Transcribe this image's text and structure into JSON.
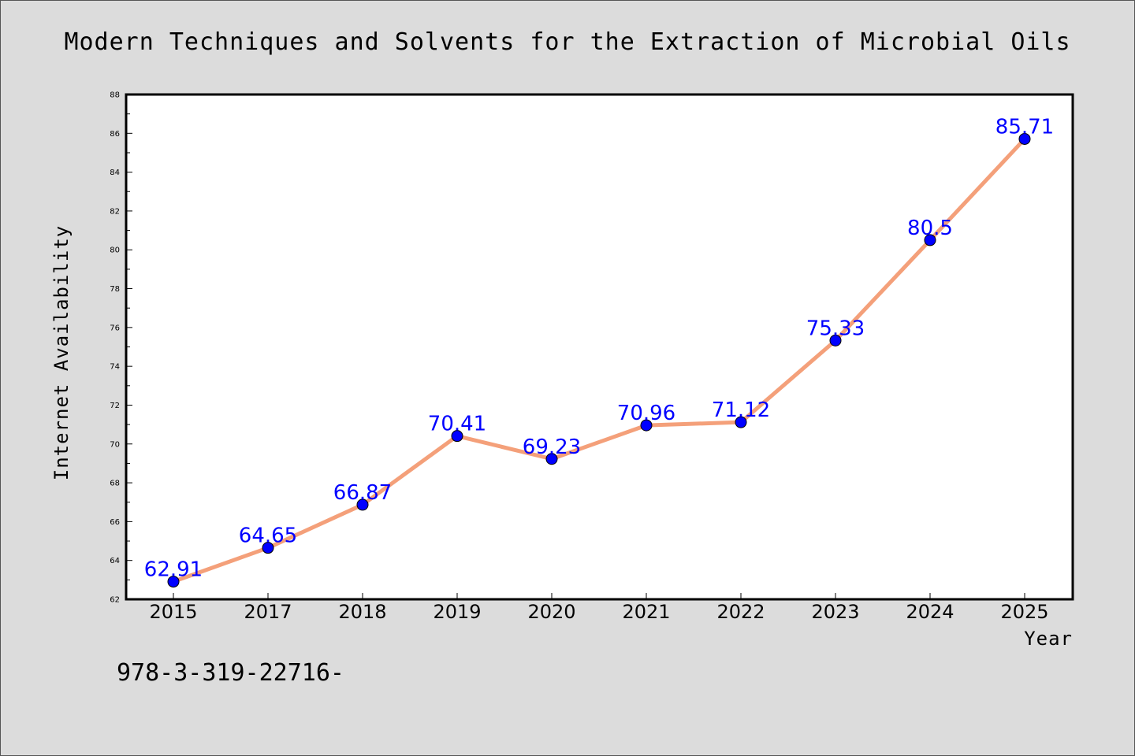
{
  "chart_data": {
    "type": "line",
    "title": "Modern Techniques and Solvents for the Extraction of Microbial Oils",
    "xlabel": "Year",
    "ylabel": "Internet Availability",
    "categories": [
      "2015",
      "2017",
      "2018",
      "2019",
      "2020",
      "2021",
      "2022",
      "2023",
      "2024",
      "2025"
    ],
    "series": [
      {
        "values": [
          62.91,
          64.65,
          66.87,
          70.41,
          69.23,
          70.96,
          71.12,
          75.33,
          80.5,
          85.71
        ],
        "data_labels": [
          "62.91",
          "64.65",
          "66.87",
          "70.41",
          "69.23",
          "70.96",
          "71.12",
          "75.33",
          "80.5",
          "85.71"
        ],
        "line_color": "#f4a07a",
        "marker_color": "#0000ff"
      }
    ],
    "ylim": [
      62,
      88
    ],
    "yticks": [
      "62",
      "64",
      "66",
      "68",
      "70",
      "72",
      "74",
      "76",
      "78",
      "80",
      "82",
      "84",
      "86",
      "88"
    ],
    "grid": false,
    "legend": "none"
  },
  "footnote": "978-3-319-22716-"
}
